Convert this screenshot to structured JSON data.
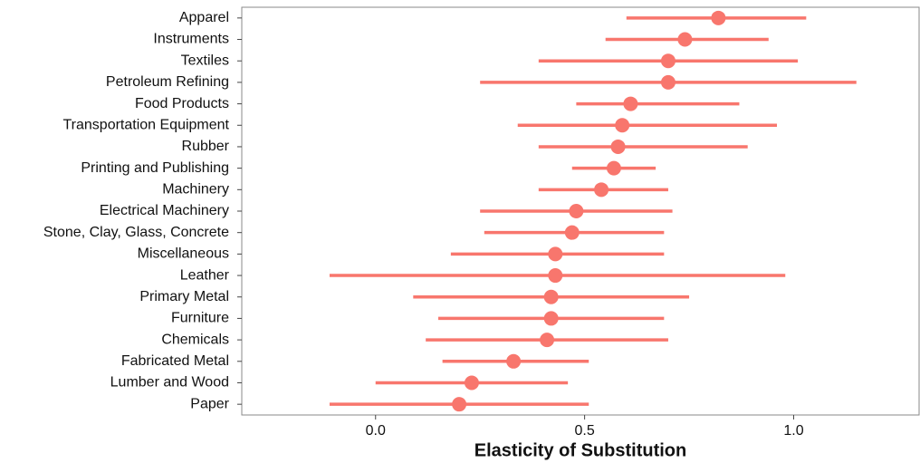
{
  "chart_data": {
    "type": "dot-interval",
    "x_label": "Elasticity of Substitution",
    "categories": [
      "Apparel",
      "Instruments",
      "Textiles",
      "Petroleum Refining",
      "Food Products",
      "Transportation Equipment",
      "Rubber",
      "Printing and Publishing",
      "Machinery",
      "Electrical Machinery",
      "Stone, Clay, Glass, Concrete",
      "Miscellaneous",
      "Leather",
      "Primary Metal",
      "Furniture",
      "Chemicals",
      "Fabricated Metal",
      "Lumber and Wood",
      "Paper"
    ],
    "values": [
      0.82,
      0.74,
      0.7,
      0.7,
      0.61,
      0.59,
      0.58,
      0.57,
      0.54,
      0.48,
      0.47,
      0.43,
      0.43,
      0.42,
      0.42,
      0.41,
      0.33,
      0.23,
      0.2
    ],
    "lower": [
      0.6,
      0.55,
      0.39,
      0.25,
      0.48,
      0.34,
      0.39,
      0.47,
      0.39,
      0.25,
      0.26,
      0.18,
      -0.11,
      0.09,
      0.15,
      0.12,
      0.16,
      0.0,
      -0.11
    ],
    "upper": [
      1.03,
      0.94,
      1.01,
      1.15,
      0.87,
      0.96,
      0.89,
      0.67,
      0.7,
      0.71,
      0.69,
      0.69,
      0.98,
      0.75,
      0.69,
      0.7,
      0.51,
      0.46,
      0.51
    ],
    "color": "#F8766D",
    "xlim": [
      -0.32,
      1.3
    ],
    "xticks": [
      {
        "value": 0.0,
        "label": "0.0"
      },
      0.5,
      {
        "value": 1.0,
        "label": "1.0"
      }
    ]
  }
}
